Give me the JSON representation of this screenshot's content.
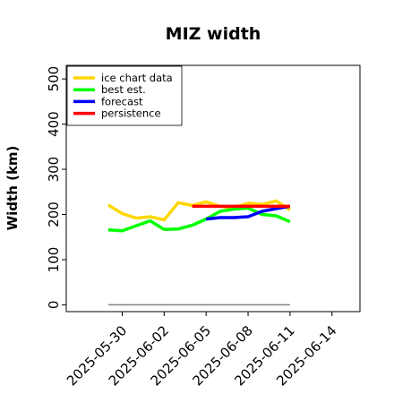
{
  "chart_data": {
    "type": "line",
    "title": "MIZ width",
    "xlabel": "",
    "ylabel": "Width (km)",
    "ylim": [
      -15,
      530
    ],
    "xlim": [
      "2025-05-26",
      "2025-06-16"
    ],
    "yticks": [
      0,
      100,
      200,
      300,
      400,
      500
    ],
    "xticks": [
      "2025-05-30",
      "2025-06-02",
      "2025-06-05",
      "2025-06-08",
      "2025-06-11",
      "2025-06-14"
    ],
    "highlight_xtick": "2025-06-05",
    "highlight_color": "#228B22",
    "grid": false,
    "legend_position": "top-left",
    "series": [
      {
        "name": "ice chart data",
        "color": "#FFD700",
        "x": [
          "2025-05-29",
          "2025-05-30",
          "2025-05-31",
          "2025-06-01",
          "2025-06-02",
          "2025-06-03",
          "2025-06-04",
          "2025-06-05",
          "2025-06-06",
          "2025-06-07",
          "2025-06-08",
          "2025-06-09",
          "2025-06-10",
          "2025-06-11"
        ],
        "y": [
          221,
          202,
          192,
          195,
          188,
          226,
          220,
          228,
          218,
          215,
          225,
          222,
          230,
          210
        ]
      },
      {
        "name": "best est.",
        "color": "#00FF00",
        "x": [
          "2025-05-29",
          "2025-05-30",
          "2025-05-31",
          "2025-06-01",
          "2025-06-02",
          "2025-06-03",
          "2025-06-04",
          "2025-06-05",
          "2025-06-06",
          "2025-06-07",
          "2025-06-08",
          "2025-06-09",
          "2025-06-10",
          "2025-06-11"
        ],
        "y": [
          166,
          164,
          175,
          186,
          167,
          168,
          176,
          190,
          207,
          212,
          214,
          200,
          197,
          184
        ]
      },
      {
        "name": "forecast",
        "color": "#0000FF",
        "x": [
          "2025-06-05",
          "2025-06-06",
          "2025-06-07",
          "2025-06-08",
          "2025-06-09",
          "2025-06-10",
          "2025-06-11"
        ],
        "y": [
          190,
          193,
          193,
          195,
          207,
          213,
          218
        ]
      },
      {
        "name": "persistence",
        "color": "#FF0000",
        "x": [
          "2025-06-04",
          "2025-06-05",
          "2025-06-06",
          "2025-06-07",
          "2025-06-08",
          "2025-06-09",
          "2025-06-10",
          "2025-06-11"
        ],
        "y": [
          218,
          218,
          218,
          218,
          218,
          218,
          218,
          218
        ]
      },
      {
        "name": "",
        "color": "#808080",
        "x": [
          "2025-05-29",
          "2025-06-11"
        ],
        "y": [
          0,
          0
        ]
      }
    ]
  }
}
